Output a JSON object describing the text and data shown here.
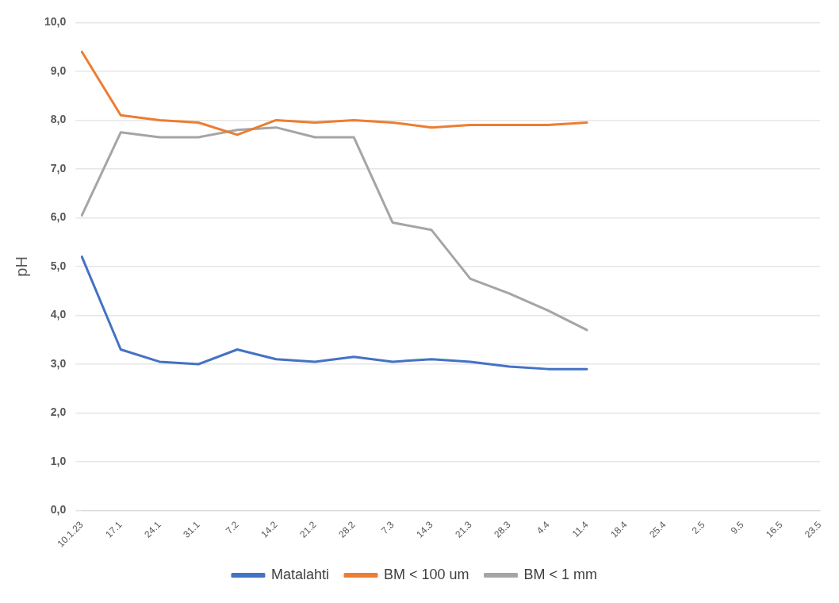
{
  "chart_data": {
    "type": "line",
    "ylabel": "pH",
    "categories": [
      "10.1.23",
      "17.1",
      "24.1",
      "31.1",
      "7.2",
      "14.2",
      "21.2",
      "28.2",
      "7.3",
      "14.3",
      "21.3",
      "28.3",
      "4.4",
      "11.4",
      "18.4",
      "25.4",
      "2.5",
      "9.5",
      "16.5",
      "23.5"
    ],
    "series": [
      {
        "name": "Matalahti",
        "color": "#4472c4",
        "values": [
          5.2,
          3.3,
          3.05,
          3.0,
          3.3,
          3.1,
          3.05,
          3.15,
          3.05,
          3.1,
          3.05,
          2.95,
          2.9,
          2.9,
          null,
          null,
          null,
          null,
          null,
          null
        ]
      },
      {
        "name": "BM < 100 um",
        "color": "#ed7d31",
        "values": [
          9.4,
          8.1,
          8.0,
          7.95,
          7.7,
          8.0,
          7.95,
          8.0,
          7.95,
          7.85,
          7.9,
          7.9,
          7.9,
          7.95,
          null,
          null,
          null,
          null,
          null,
          null
        ]
      },
      {
        "name": "BM < 1 mm",
        "color": "#a5a5a5",
        "values": [
          6.05,
          7.75,
          7.65,
          7.65,
          7.8,
          7.85,
          7.65,
          7.65,
          5.9,
          5.75,
          4.75,
          4.45,
          4.1,
          3.7,
          null,
          null,
          null,
          null,
          null,
          null
        ]
      }
    ],
    "ylim": [
      0,
      10
    ],
    "yticks": [
      {
        "value": 0,
        "label": "0,0"
      },
      {
        "value": 1,
        "label": "1,0"
      },
      {
        "value": 2,
        "label": "2,0"
      },
      {
        "value": 3,
        "label": "3,0"
      },
      {
        "value": 4,
        "label": "4,0"
      },
      {
        "value": 5,
        "label": "5,0"
      },
      {
        "value": 6,
        "label": "6,0"
      },
      {
        "value": 7,
        "label": "7,0"
      },
      {
        "value": 8,
        "label": "8,0"
      },
      {
        "value": 9,
        "label": "9,0"
      },
      {
        "value": 10,
        "label": "10,0"
      }
    ],
    "grid": "y",
    "legend": "bottom",
    "marker": "none",
    "line_style": "solid"
  }
}
